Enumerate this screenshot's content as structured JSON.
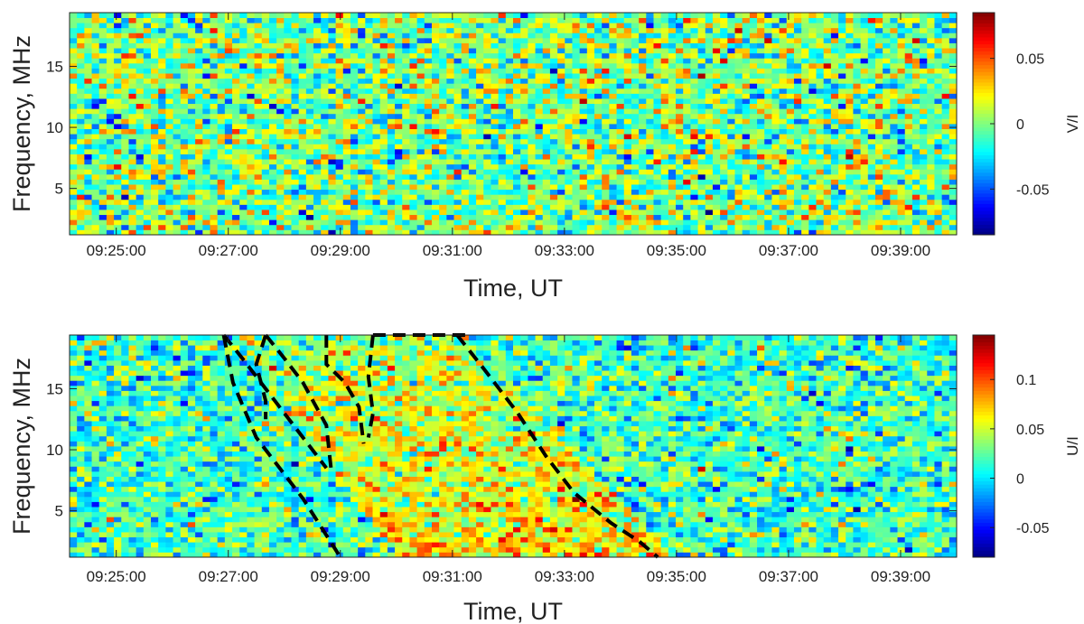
{
  "chart_data": [
    {
      "type": "heatmap",
      "title": "",
      "xlabel": "Time, UT",
      "ylabel": "Frequency, MHz",
      "x_range": [
        "09:24:10",
        "09:40:00"
      ],
      "x_ticks": [
        "09:25:00",
        "09:27:00",
        "09:29:00",
        "09:31:00",
        "09:33:00",
        "09:35:00",
        "09:37:00",
        "09:39:00"
      ],
      "ylim": [
        1.2,
        19.4
      ],
      "y_ticks": [
        5,
        10,
        15
      ],
      "colorbar": {
        "label": "V/I",
        "range": [
          -0.085,
          0.085
        ],
        "ticks": [
          -0.05,
          0,
          0.05
        ],
        "tick_labels": [
          "-0.05",
          "0",
          "0.05"
        ],
        "colormap": "jet"
      },
      "field": {
        "description": "noise around 0 with no coherent structure",
        "background": 0.0,
        "noise_std": 0.024,
        "time_bins": 120,
        "freq_bins": 44
      }
    },
    {
      "type": "heatmap",
      "title": "",
      "xlabel": "Time, UT",
      "ylabel": "Frequency, MHz",
      "x_range": [
        "09:24:10",
        "09:40:00"
      ],
      "x_ticks": [
        "09:25:00",
        "09:27:00",
        "09:29:00",
        "09:31:00",
        "09:33:00",
        "09:35:00",
        "09:37:00",
        "09:39:00"
      ],
      "ylim": [
        1.2,
        19.4
      ],
      "y_ticks": [
        5,
        10,
        15
      ],
      "colorbar": {
        "label": "U/I",
        "range": [
          -0.08,
          0.145
        ],
        "ticks": [
          -0.05,
          0,
          0.05,
          0.1
        ],
        "tick_labels": [
          "-0.05",
          "0",
          "0.05",
          "0.1"
        ],
        "colormap": "jet"
      },
      "field": {
        "background": 0.018,
        "noise_std": 0.026,
        "enhancement_peak": 0.085,
        "time_bins": 120,
        "freq_bins": 44
      },
      "annotations": [
        {
          "name": "boundary-1",
          "style": "black dashed",
          "points": [
            [
              "09:26:55",
              19.4
            ],
            [
              "09:27:05",
              15.5
            ],
            [
              "09:27:30",
              11
            ],
            [
              "09:28:20",
              6
            ],
            [
              "09:29:00",
              1.2
            ]
          ]
        },
        {
          "name": "boundary-2",
          "style": "black dashed",
          "points": [
            [
              "09:26:55",
              19.4
            ],
            [
              "09:27:15",
              17.5
            ],
            [
              "09:27:40",
              15
            ],
            [
              "09:28:00",
              13
            ],
            [
              "09:28:20",
              11
            ],
            [
              "09:28:45",
              8.5
            ]
          ]
        },
        {
          "name": "boundary-3",
          "style": "black dashed",
          "points": [
            [
              "09:27:40",
              19.4
            ],
            [
              "09:27:30",
              17
            ],
            [
              "09:27:40",
              14
            ],
            [
              "09:27:40",
              12.5
            ]
          ]
        },
        {
          "name": "boundary-4",
          "style": "black dashed",
          "points": [
            [
              "09:27:40",
              19.4
            ],
            [
              "09:28:00",
              17.5
            ],
            [
              "09:28:20",
              15.5
            ],
            [
              "09:28:45",
              12
            ],
            [
              "09:28:50",
              8.5
            ]
          ]
        },
        {
          "name": "boundary-5",
          "style": "black dashed",
          "points": [
            [
              "09:28:45",
              19.4
            ],
            [
              "09:28:45",
              17
            ],
            [
              "09:29:05",
              15.5
            ],
            [
              "09:29:20",
              13.5
            ],
            [
              "09:29:25",
              10.5
            ]
          ]
        },
        {
          "name": "boundary-6",
          "style": "black dashed",
          "points": [
            [
              "09:29:35",
              19.4
            ],
            [
              "09:29:30",
              16
            ],
            [
              "09:29:35",
              13
            ],
            [
              "09:29:30",
              11
            ]
          ]
        },
        {
          "name": "boundary-7",
          "style": "black dashed",
          "points": [
            [
              "09:29:35",
              19.4
            ],
            [
              "09:31:20",
              19.4
            ]
          ]
        },
        {
          "name": "boundary-8",
          "style": "black dashed",
          "points": [
            [
              "09:31:05",
              19.4
            ],
            [
              "09:31:35",
              16.5
            ],
            [
              "09:32:10",
              13
            ],
            [
              "09:32:40",
              9.5
            ],
            [
              "09:33:10",
              6.5
            ],
            [
              "09:33:50",
              4
            ],
            [
              "09:34:20",
              2.5
            ],
            [
              "09:34:40",
              1.2
            ]
          ]
        }
      ]
    }
  ]
}
